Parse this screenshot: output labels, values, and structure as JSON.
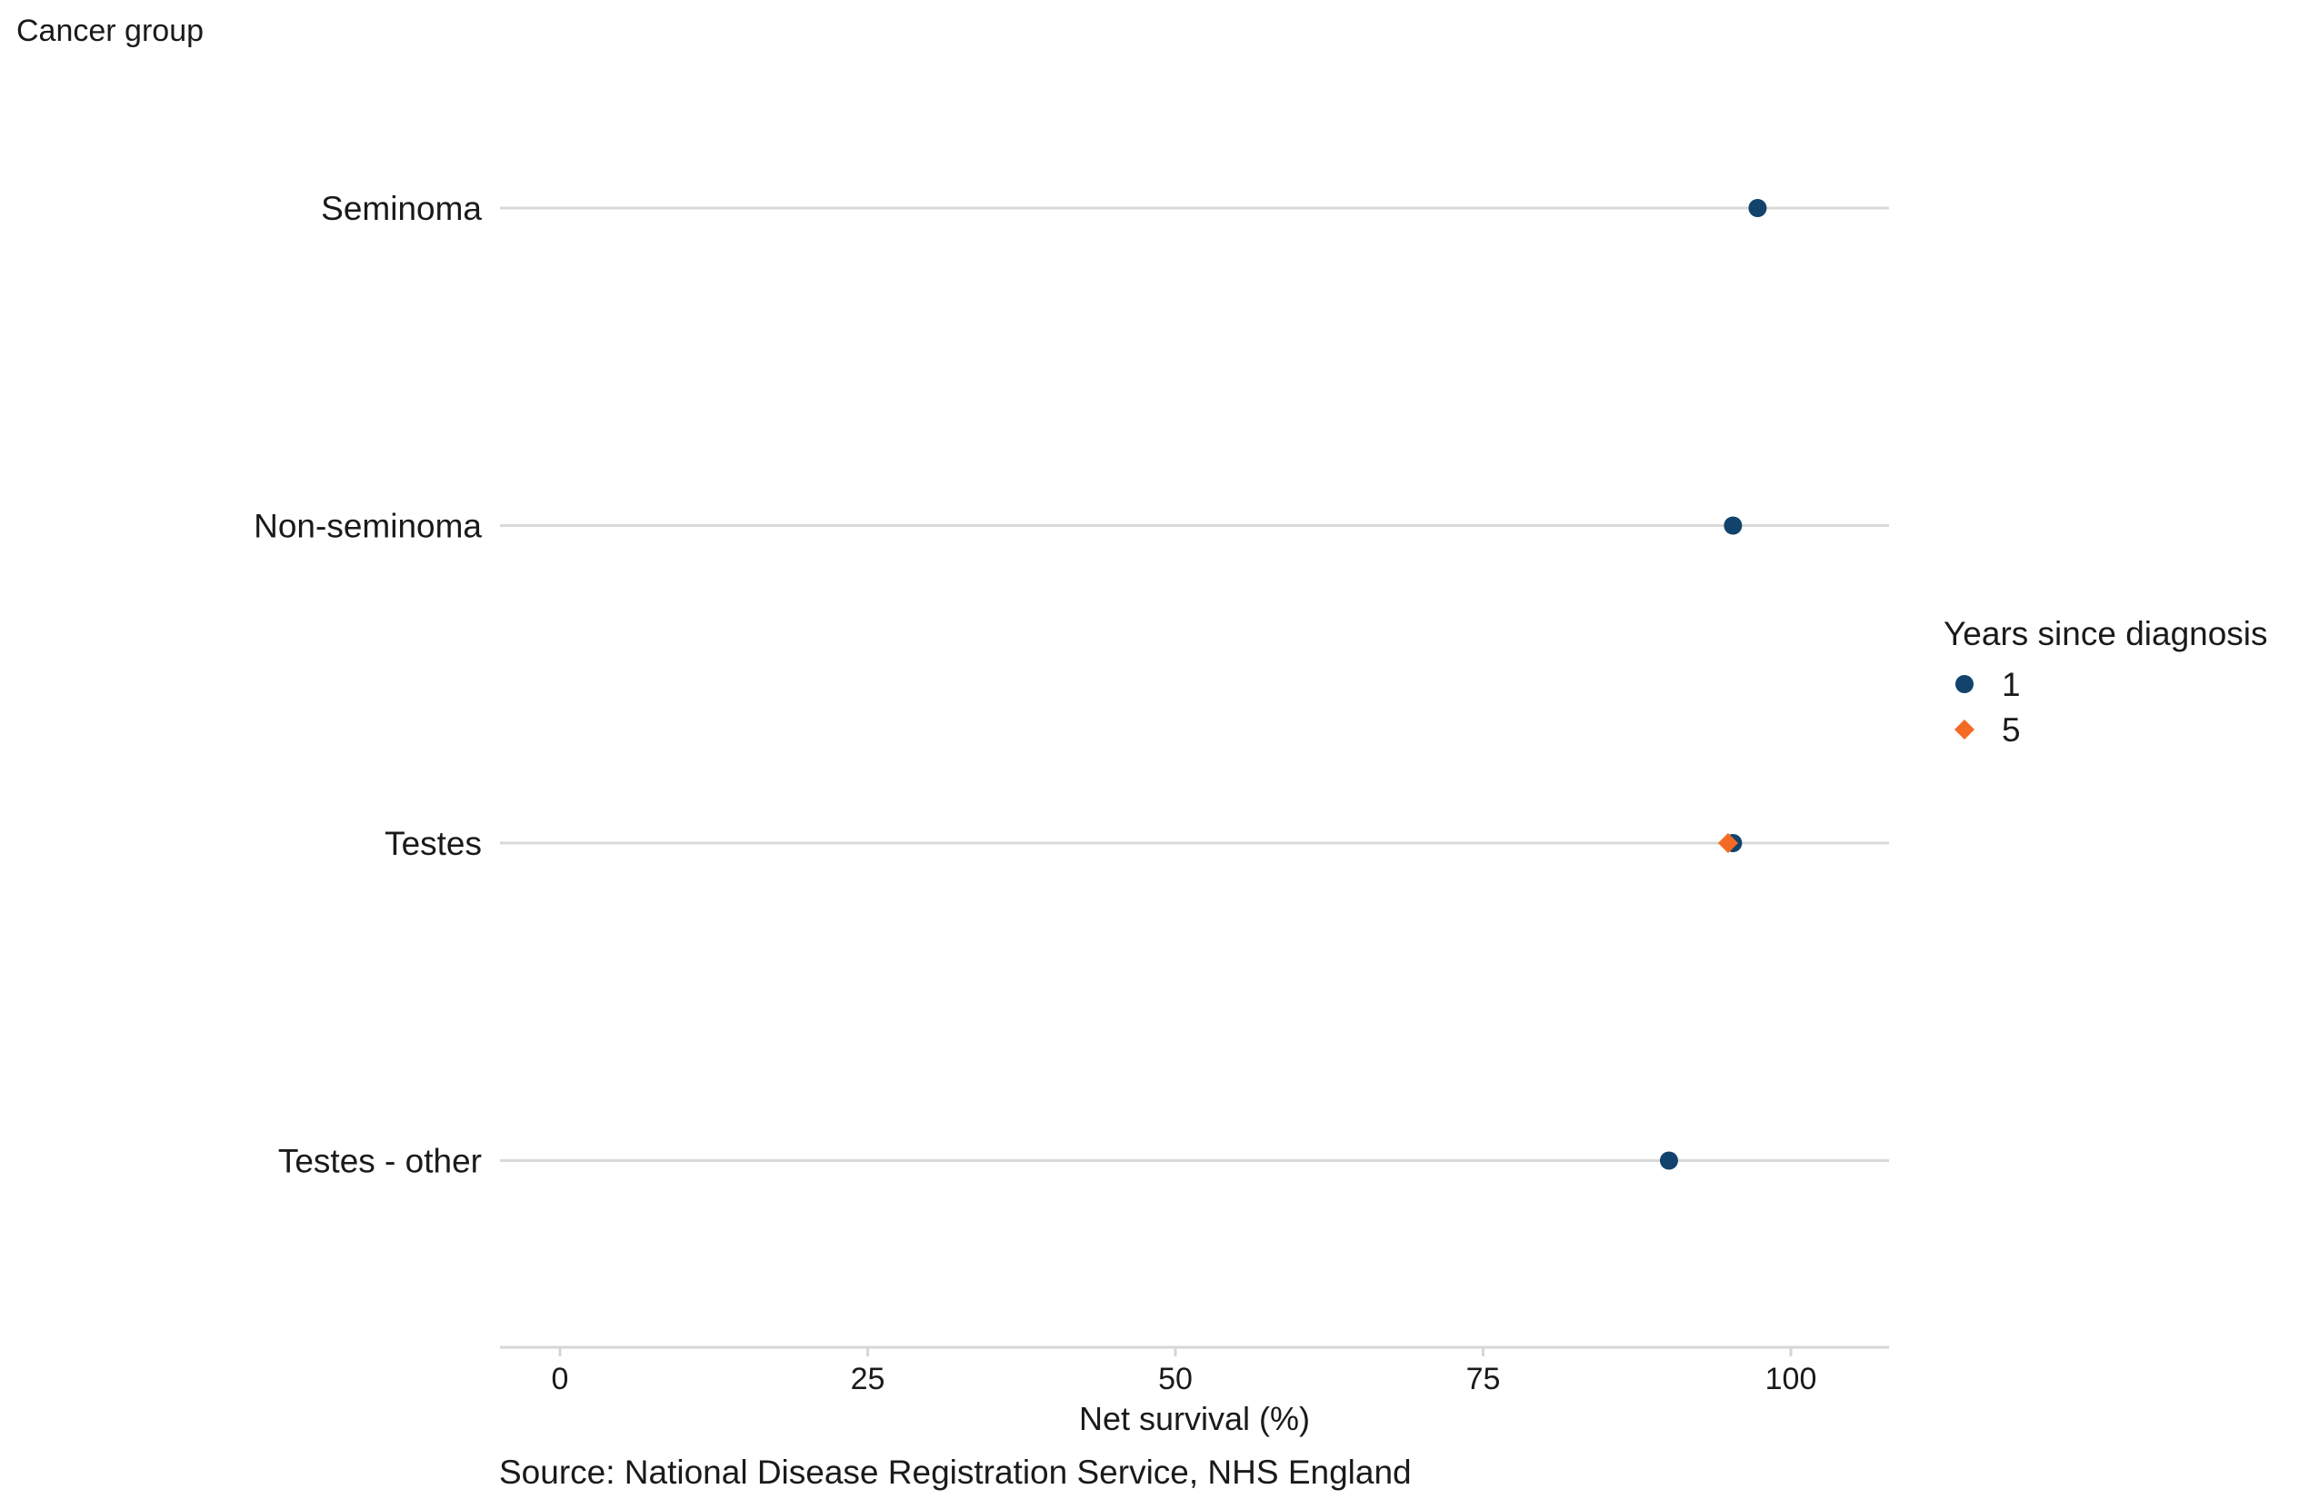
{
  "chart_data": {
    "type": "scatter",
    "ylabel": "Cancer group",
    "xlabel": "Net survival (%)",
    "source": "Source: National Disease Registration Service, NHS England",
    "categories": [
      "Seminoma",
      "Non-seminoma",
      "Testes",
      "Testes - other"
    ],
    "xlim": [
      -5,
      108
    ],
    "x_ticks": [
      0,
      25,
      50,
      75,
      100
    ],
    "x_tick_labels": [
      "0",
      "25",
      "50",
      "75",
      "100"
    ],
    "grid": "horizontal lines per category",
    "legend": {
      "title": "Years since diagnosis",
      "placement": "right",
      "entries": [
        "1",
        "5"
      ]
    },
    "series": [
      {
        "name": "1",
        "marker": "circle",
        "color": "#12436D",
        "values": [
          97.3,
          95.3,
          95.3,
          90.1
        ]
      },
      {
        "name": "5",
        "marker": "diamond",
        "color": "#F46A25",
        "values": [
          null,
          null,
          94.9,
          null
        ]
      }
    ]
  }
}
